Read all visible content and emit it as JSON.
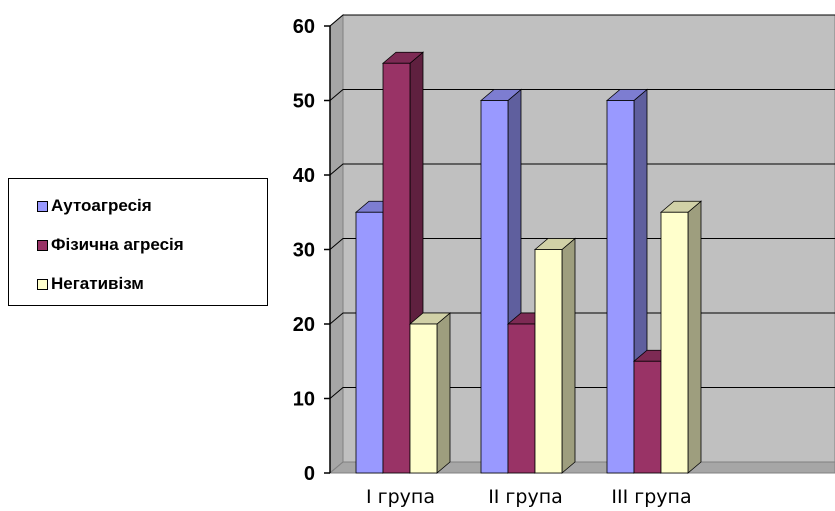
{
  "chart_data": {
    "type": "bar",
    "categories": [
      "I група",
      "II група",
      "III група"
    ],
    "series": [
      {
        "name": "Аутоагресія",
        "values": [
          35,
          50,
          50
        ],
        "color": "#9999ff"
      },
      {
        "name": "Фізична агресія",
        "values": [
          55,
          20,
          15
        ],
        "color": "#993366"
      },
      {
        "name": "Негативізм",
        "values": [
          20,
          30,
          35
        ],
        "color": "#ffffcc"
      }
    ],
    "yticks": [
      "0",
      "10",
      "20",
      "30",
      "40",
      "50",
      "60"
    ],
    "ylim": [
      0,
      60
    ],
    "grid": true,
    "legend_position": "left",
    "title": "",
    "xlabel": "",
    "ylabel": ""
  }
}
